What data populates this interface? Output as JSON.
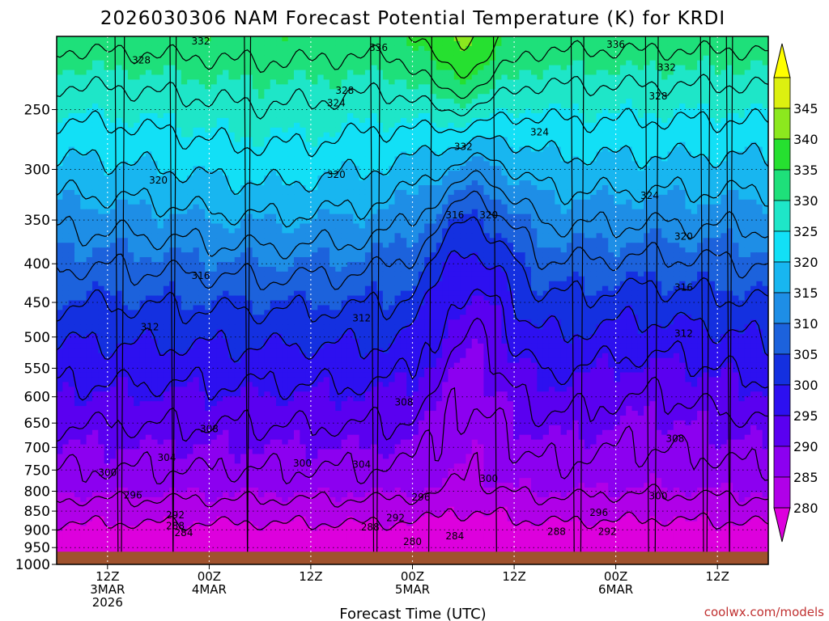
{
  "chart_data": {
    "type": "contour",
    "title": "2026030306 NAM Forecast Potential Temperature (K) for KRDI",
    "xlabel": "Forecast Time (UTC)",
    "ylabel": "",
    "credit": "coolwx.com/models",
    "y_ticks": [
      250,
      300,
      350,
      400,
      450,
      500,
      550,
      600,
      650,
      700,
      750,
      800,
      850,
      900,
      950,
      1000
    ],
    "y_range_hpa": [
      200,
      1000
    ],
    "x_ticks": [
      {
        "hours": 6,
        "line1": "12Z",
        "line2": "3MAR",
        "line3": "2026"
      },
      {
        "hours": 18,
        "line1": "00Z",
        "line2": "4MAR",
        "line3": ""
      },
      {
        "hours": 30,
        "line1": "12Z",
        "line2": "",
        "line3": ""
      },
      {
        "hours": 42,
        "line1": "00Z",
        "line2": "5MAR",
        "line3": ""
      },
      {
        "hours": 54,
        "line1": "12Z",
        "line2": "",
        "line3": ""
      },
      {
        "hours": 66,
        "line1": "00Z",
        "line2": "6MAR",
        "line3": ""
      },
      {
        "hours": 78,
        "line1": "12Z",
        "line2": "",
        "line3": ""
      }
    ],
    "x_range_hours": [
      0,
      84
    ],
    "colorbar": {
      "levels": [
        280,
        285,
        290,
        295,
        300,
        305,
        310,
        315,
        320,
        325,
        330,
        335,
        340,
        345
      ],
      "colors": [
        "#dd00dd",
        "#b000e8",
        "#8c00f0",
        "#5a00f0",
        "#2d10f0",
        "#1430e0",
        "#1c62dc",
        "#1e8ee6",
        "#18b6f0",
        "#12e0f6",
        "#1ee6c8",
        "#1ee07a",
        "#26e030",
        "#8ce81e",
        "#dcf010",
        "#ffff00"
      ]
    },
    "terrain_color": "#a0522d",
    "terrain_top_hpa": 962,
    "contour_labels": [
      {
        "value": "332",
        "hours": 17,
        "hpa": 203
      },
      {
        "value": "328",
        "hours": 10,
        "hpa": 215
      },
      {
        "value": "336",
        "hours": 38,
        "hpa": 207
      },
      {
        "value": "336",
        "hours": 66,
        "hpa": 205
      },
      {
        "value": "332",
        "hours": 72,
        "hpa": 220
      },
      {
        "value": "328",
        "hours": 34,
        "hpa": 236
      },
      {
        "value": "324",
        "hours": 33,
        "hpa": 245
      },
      {
        "value": "328",
        "hours": 71,
        "hpa": 240
      },
      {
        "value": "332",
        "hours": 48,
        "hpa": 280
      },
      {
        "value": "324",
        "hours": 57,
        "hpa": 268
      },
      {
        "value": "320",
        "hours": 12,
        "hpa": 310
      },
      {
        "value": "320",
        "hours": 33,
        "hpa": 305
      },
      {
        "value": "324",
        "hours": 70,
        "hpa": 325
      },
      {
        "value": "316",
        "hours": 47,
        "hpa": 345
      },
      {
        "value": "320",
        "hours": 51,
        "hpa": 345
      },
      {
        "value": "320",
        "hours": 74,
        "hpa": 368
      },
      {
        "value": "316",
        "hours": 17,
        "hpa": 415
      },
      {
        "value": "316",
        "hours": 74,
        "hpa": 430
      },
      {
        "value": "312",
        "hours": 11,
        "hpa": 485
      },
      {
        "value": "312",
        "hours": 36,
        "hpa": 472
      },
      {
        "value": "312",
        "hours": 74,
        "hpa": 495
      },
      {
        "value": "308",
        "hours": 41,
        "hpa": 610
      },
      {
        "value": "308",
        "hours": 18,
        "hpa": 662
      },
      {
        "value": "308",
        "hours": 73,
        "hpa": 682
      },
      {
        "value": "304",
        "hours": 13,
        "hpa": 722
      },
      {
        "value": "300",
        "hours": 29,
        "hpa": 735
      },
      {
        "value": "304",
        "hours": 36,
        "hpa": 738
      },
      {
        "value": "300",
        "hours": 6,
        "hpa": 756
      },
      {
        "value": "300",
        "hours": 51,
        "hpa": 770
      },
      {
        "value": "296",
        "hours": 9,
        "hpa": 810
      },
      {
        "value": "296",
        "hours": 43,
        "hpa": 815
      },
      {
        "value": "300",
        "hours": 71,
        "hpa": 812
      },
      {
        "value": "292",
        "hours": 14,
        "hpa": 860
      },
      {
        "value": "296",
        "hours": 64,
        "hpa": 854
      },
      {
        "value": "292",
        "hours": 40,
        "hpa": 868
      },
      {
        "value": "288",
        "hours": 14,
        "hpa": 890
      },
      {
        "value": "288",
        "hours": 37,
        "hpa": 893
      },
      {
        "value": "288",
        "hours": 59,
        "hpa": 905
      },
      {
        "value": "292",
        "hours": 65,
        "hpa": 905
      },
      {
        "value": "284",
        "hours": 15,
        "hpa": 908
      },
      {
        "value": "284",
        "hours": 47,
        "hpa": 917
      },
      {
        "value": "280",
        "hours": 42,
        "hpa": 933
      }
    ]
  }
}
